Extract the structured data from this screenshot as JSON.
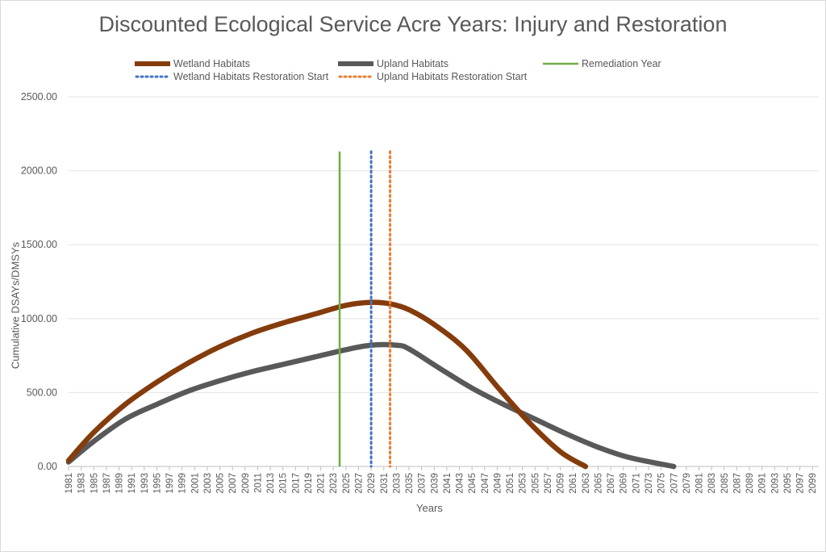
{
  "chart_data": {
    "type": "line",
    "title": "Discounted Ecological Service Acre Years: Injury and Restoration",
    "xlabel": "Years",
    "ylabel": "Cumulative DSAYs/DMSYs",
    "ylim": [
      0,
      2500
    ],
    "yticks": [
      "0.00",
      "500.00",
      "1000.00",
      "1500.00",
      "2000.00",
      "2500.00"
    ],
    "x_tick_labels": [
      "1981",
      "1983",
      "1985",
      "1987",
      "1989",
      "1991",
      "1993",
      "1995",
      "1997",
      "1999",
      "2001",
      "2003",
      "2005",
      "2007",
      "2009",
      "2011",
      "2013",
      "2015",
      "2017",
      "2019",
      "2021",
      "2023",
      "2025",
      "2027",
      "2029",
      "2031",
      "2033",
      "2035",
      "2037",
      "2039",
      "2041",
      "2043",
      "2045",
      "2047",
      "2049",
      "2051",
      "2053",
      "2055",
      "2057",
      "2059",
      "2061",
      "2063",
      "2065",
      "2067",
      "2069",
      "2071",
      "2073",
      "2075",
      "2077",
      "2079",
      "2081",
      "2083",
      "2085",
      "2087",
      "2089",
      "2091",
      "2093",
      "2095",
      "2097",
      "2099"
    ],
    "xlim": [
      1981,
      2100
    ],
    "legend_position": "top",
    "series": [
      {
        "name": "Wetland Habitats",
        "color": "#843c0c",
        "style": "solid-thick",
        "x": [
          1981,
          1985,
          1990,
          1995,
          2000,
          2005,
          2010,
          2015,
          2020,
          2025,
          2029,
          2032,
          2035,
          2039,
          2044,
          2049,
          2054,
          2059,
          2063
        ],
        "y": [
          40,
          230,
          420,
          570,
          700,
          810,
          900,
          970,
          1030,
          1090,
          1110,
          1100,
          1060,
          960,
          790,
          540,
          300,
          100,
          0
        ]
      },
      {
        "name": "Upland Habitats",
        "color": "#595959",
        "style": "solid-thick",
        "x": [
          1981,
          1985,
          1990,
          1995,
          2000,
          2005,
          2010,
          2015,
          2020,
          2025,
          2029,
          2033,
          2035,
          2040,
          2045,
          2050,
          2055,
          2060,
          2065,
          2070,
          2077
        ],
        "y": [
          30,
          170,
          320,
          420,
          510,
          580,
          640,
          690,
          740,
          790,
          820,
          820,
          795,
          660,
          530,
          420,
          320,
          220,
          130,
          60,
          0
        ]
      }
    ],
    "vertical_lines": [
      {
        "name": "Remediation Year",
        "x": 2024,
        "color": "#70ad47",
        "style": "solid",
        "y_top": 2130
      },
      {
        "name": "Wetland Habitats Restoration Start",
        "x": 2029,
        "color": "#4472c4",
        "style": "dotted",
        "y_top": 2130
      },
      {
        "name": "Upland Habitats Restoration Start",
        "x": 2032,
        "color": "#ed7d31",
        "style": "dotted",
        "y_top": 2130
      }
    ]
  }
}
